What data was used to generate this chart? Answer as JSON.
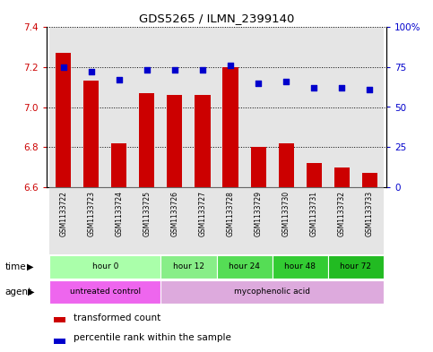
{
  "title": "GDS5265 / ILMN_2399140",
  "samples": [
    "GSM1133722",
    "GSM1133723",
    "GSM1133724",
    "GSM1133725",
    "GSM1133726",
    "GSM1133727",
    "GSM1133728",
    "GSM1133729",
    "GSM1133730",
    "GSM1133731",
    "GSM1133732",
    "GSM1133733"
  ],
  "bar_values": [
    7.27,
    7.13,
    6.82,
    7.07,
    7.06,
    7.06,
    7.2,
    6.8,
    6.82,
    6.72,
    6.7,
    6.67
  ],
  "bar_bottom": 6.6,
  "dot_values": [
    75,
    72,
    67,
    73,
    73,
    73,
    76,
    65,
    66,
    62,
    62,
    61
  ],
  "ylim_left": [
    6.6,
    7.4
  ],
  "ylim_right": [
    0,
    100
  ],
  "yticks_left": [
    6.6,
    6.8,
    7.0,
    7.2,
    7.4
  ],
  "yticks_right": [
    0,
    25,
    50,
    75,
    100
  ],
  "ytick_labels_right": [
    "0",
    "25",
    "50",
    "75",
    "100%"
  ],
  "bar_color": "#cc0000",
  "dot_color": "#0000cc",
  "bg_color": "#ffffff",
  "col_bg_color": "#cccccc",
  "time_groups": [
    {
      "label": "hour 0",
      "start": 0,
      "end": 3,
      "color": "#aaffaa"
    },
    {
      "label": "hour 12",
      "start": 4,
      "end": 5,
      "color": "#88ee88"
    },
    {
      "label": "hour 24",
      "start": 6,
      "end": 7,
      "color": "#55dd55"
    },
    {
      "label": "hour 48",
      "start": 8,
      "end": 9,
      "color": "#33cc33"
    },
    {
      "label": "hour 72",
      "start": 10,
      "end": 11,
      "color": "#22bb22"
    }
  ],
  "agent_groups": [
    {
      "label": "untreated control",
      "start": 0,
      "end": 3,
      "color": "#ee66ee"
    },
    {
      "label": "mycophenolic acid",
      "start": 4,
      "end": 11,
      "color": "#ddaadd"
    }
  ],
  "time_label": "time",
  "agent_label": "agent",
  "legend_bar_label": "transformed count",
  "legend_dot_label": "percentile rank within the sample",
  "bar_width": 0.55
}
